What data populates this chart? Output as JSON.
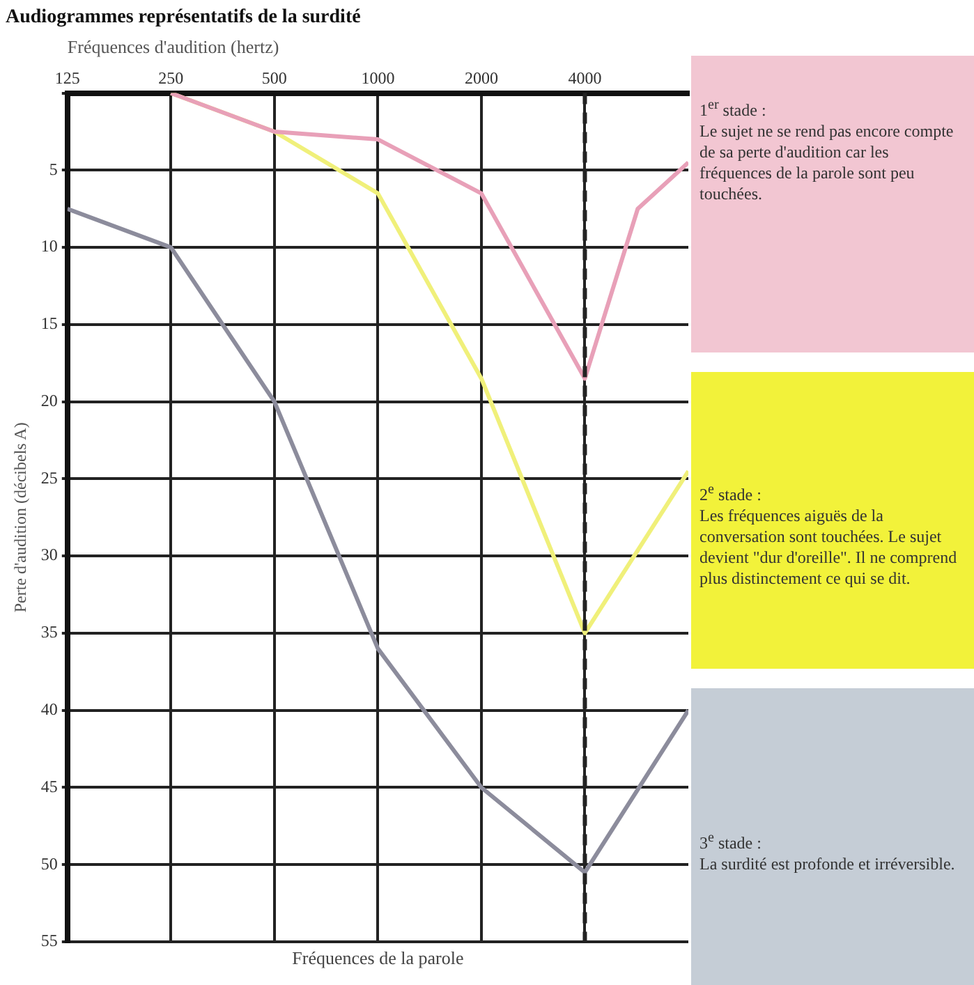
{
  "chart_data": {
    "type": "line",
    "title": "Audiogrammes représentatifs de la surdité",
    "xlabel": "Fréquences d'audition (hertz)",
    "ylabel": "Perte d'audition (décibels A)",
    "log": "x",
    "xlim": [
      125,
      8000
    ],
    "xticks": [
      125,
      250,
      500,
      1000,
      2000,
      4000
    ],
    "ylim": [
      55,
      0
    ],
    "yticks": [
      {
        "value": 0,
        "label": null
      },
      5,
      10,
      15,
      20,
      25,
      30,
      35,
      40,
      45,
      50,
      55
    ],
    "grid": true,
    "legend": false,
    "marker": "none",
    "line_style": "solid",
    "series": [
      {
        "color": "#e8a0b8",
        "x": [
          250,
          500,
          1000,
          2000,
          4000,
          5700,
          8000
        ],
        "values": [
          0,
          2.5,
          3,
          6.5,
          18.5,
          7.5,
          4.5
        ]
      },
      {
        "color": "#f0f07a",
        "x": [
          250,
          500,
          1000,
          2000,
          4000,
          8000
        ],
        "values": [
          0,
          2.5,
          6.5,
          18.5,
          35,
          24.5
        ]
      },
      {
        "color": "#8c8c9c",
        "x": [
          125,
          250,
          500,
          1000,
          2000,
          4000,
          8000
        ],
        "values": [
          7.5,
          10,
          20,
          36,
          45,
          50.5,
          40
        ]
      }
    ],
    "ref_lines": [
      {
        "axis": "x",
        "value": 4000,
        "color": "#222222",
        "line_style": "dashed"
      }
    ],
    "annotations": [
      "Fréquences de la parole",
      "1$^{er}$ stade :\nLe sujet ne se rend pas encore compte de sa perte d'audition car les fréquences de la parole sont peu touchées.",
      "2$^{e}$ stade :\nLes fréquences aiguës de la conversation sont touchées. Le sujet devient \"dur d'oreille\". Il ne comprend plus distinctement ce qui se dit.",
      "3$^{e}$ stade :\nLa surdité est profonde et irréversible."
    ]
  }
}
